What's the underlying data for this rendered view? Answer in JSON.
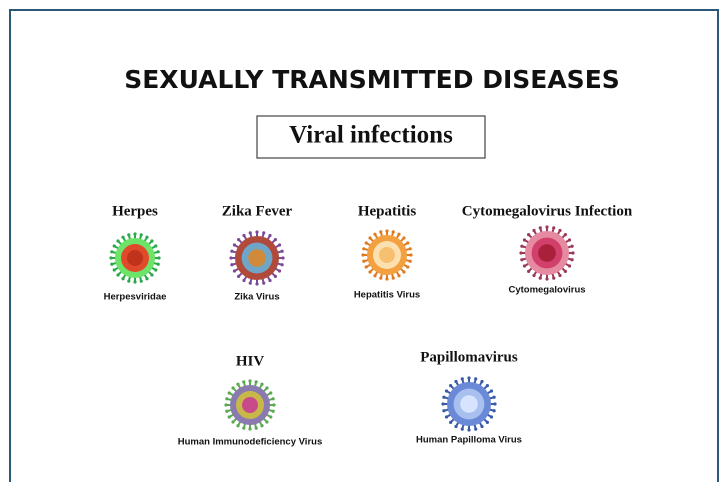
{
  "header": {
    "title": "SEXUALLY TRANSMITTED DISEASES",
    "subtitle": "Viral infections"
  },
  "viruses": [
    {
      "name": "Herpes",
      "caption": "Herpesviridae"
    },
    {
      "name": "Zika Fever",
      "caption": "Zika Virus"
    },
    {
      "name": "Hepatitis",
      "caption": "Hepatitis Virus"
    },
    {
      "name": "Cytomegalovirus Infection",
      "caption": "Cytomegalovirus"
    },
    {
      "name": "HIV",
      "caption": "Human Immunodeficiency Virus"
    },
    {
      "name": "Papillomavirus",
      "caption": "Human Papilloma Virus"
    }
  ]
}
